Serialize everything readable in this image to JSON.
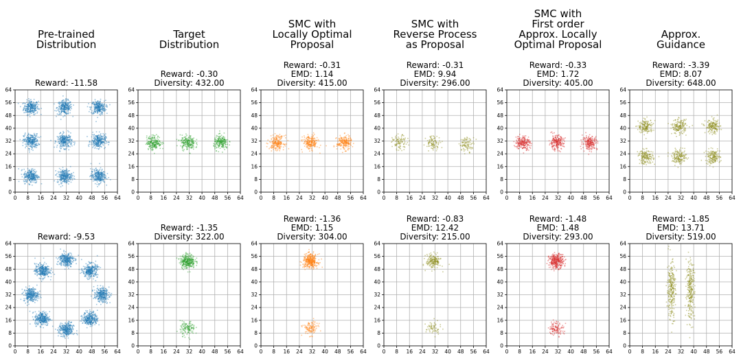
{
  "figure": {
    "columns": [
      "Pre-trained\nDistribution",
      "Target\nDistribution",
      "SMC with\nLocally Optimal\nProposal",
      "SMC with\nReverse Process\nas Proposal",
      "SMC with\nFirst order\nApprox. Locally\nOptimal Proposal",
      "Approx.\nGuidance"
    ]
  },
  "colors": {
    "blue": "#1f77b4",
    "green": "#2ca02c",
    "orange": "#ff7f0e",
    "olive": "#8c8c1a",
    "red": "#d62728"
  },
  "chart_data": [
    {
      "type": "scatter",
      "row": 0,
      "col": 0,
      "subtitle": "Reward: -11.58",
      "color": "blue",
      "xlim": [
        0,
        64
      ],
      "ylim": [
        0,
        64
      ],
      "ticks": [
        0,
        8,
        16,
        24,
        32,
        40,
        48,
        56,
        64
      ],
      "grid": true,
      "clusters": [
        {
          "x": 10,
          "y": 53,
          "n": 260
        },
        {
          "x": 31,
          "y": 53,
          "n": 260
        },
        {
          "x": 52,
          "y": 53,
          "n": 260
        },
        {
          "x": 10,
          "y": 32,
          "n": 260
        },
        {
          "x": 31,
          "y": 32,
          "n": 260
        },
        {
          "x": 52,
          "y": 32,
          "n": 260
        },
        {
          "x": 10,
          "y": 10,
          "n": 260
        },
        {
          "x": 31,
          "y": 10,
          "n": 260
        },
        {
          "x": 52,
          "y": 10,
          "n": 260
        }
      ]
    },
    {
      "type": "scatter",
      "row": 0,
      "col": 1,
      "subtitle": "Reward: -0.30\nDiversity: 432.00",
      "color": "green",
      "xlim": [
        0,
        64
      ],
      "ylim": [
        0,
        64
      ],
      "ticks": [
        0,
        8,
        16,
        24,
        32,
        40,
        48,
        56,
        64
      ],
      "grid": true,
      "clusters": [
        {
          "x": 10,
          "y": 31,
          "n": 200
        },
        {
          "x": 31,
          "y": 31,
          "n": 200
        },
        {
          "x": 52,
          "y": 31,
          "n": 200
        }
      ]
    },
    {
      "type": "scatter",
      "row": 0,
      "col": 2,
      "subtitle": "Reward: -0.31\nEMD: 1.14\nDiversity: 415.00",
      "color": "orange",
      "xlim": [
        0,
        64
      ],
      "ylim": [
        0,
        64
      ],
      "ticks": [
        0,
        8,
        16,
        24,
        32,
        40,
        48,
        56,
        64
      ],
      "grid": true,
      "clusters": [
        {
          "x": 10,
          "y": 31,
          "n": 200
        },
        {
          "x": 31,
          "y": 31,
          "n": 200
        },
        {
          "x": 52,
          "y": 31,
          "n": 200
        }
      ]
    },
    {
      "type": "scatter",
      "row": 0,
      "col": 3,
      "subtitle": "Reward: -0.31\nEMD: 9.94\nDiversity: 296.00",
      "color": "olive",
      "xlim": [
        0,
        64
      ],
      "ylim": [
        0,
        64
      ],
      "ticks": [
        0,
        8,
        16,
        24,
        32,
        40,
        48,
        56,
        64
      ],
      "grid": true,
      "clusters": [
        {
          "x": 10,
          "y": 31,
          "n": 90
        },
        {
          "x": 31,
          "y": 31,
          "n": 90
        },
        {
          "x": 52,
          "y": 30,
          "n": 90
        }
      ]
    },
    {
      "type": "scatter",
      "row": 0,
      "col": 4,
      "subtitle": "Reward: -0.33\nEMD: 1.72\nDiversity: 405.00",
      "color": "red",
      "xlim": [
        0,
        64
      ],
      "ylim": [
        0,
        64
      ],
      "ticks": [
        0,
        8,
        16,
        24,
        32,
        40,
        48,
        56,
        64
      ],
      "grid": true,
      "clusters": [
        {
          "x": 10,
          "y": 31,
          "n": 200
        },
        {
          "x": 31,
          "y": 31,
          "n": 200
        },
        {
          "x": 52,
          "y": 31,
          "n": 200
        }
      ]
    },
    {
      "type": "scatter",
      "row": 0,
      "col": 5,
      "subtitle": "Reward: -3.39\nEMD: 8.07\nDiversity: 648.00",
      "color": "olive",
      "xlim": [
        0,
        64
      ],
      "ylim": [
        0,
        64
      ],
      "ticks": [
        0,
        8,
        16,
        24,
        32,
        40,
        48,
        56,
        64
      ],
      "grid": true,
      "clusters": [
        {
          "x": 10,
          "y": 41,
          "n": 160
        },
        {
          "x": 31,
          "y": 41,
          "n": 160
        },
        {
          "x": 52,
          "y": 41,
          "n": 160
        },
        {
          "x": 10,
          "y": 22,
          "n": 160
        },
        {
          "x": 31,
          "y": 22,
          "n": 160
        },
        {
          "x": 52,
          "y": 22,
          "n": 160
        }
      ]
    },
    {
      "type": "scatter",
      "row": 1,
      "col": 0,
      "subtitle": "Reward: -9.53",
      "color": "blue",
      "xlim": [
        0,
        64
      ],
      "ylim": [
        0,
        64
      ],
      "ticks": [
        0,
        8,
        16,
        24,
        32,
        40,
        48,
        56,
        64
      ],
      "grid": true,
      "clusters": [
        {
          "x": 32,
          "y": 54,
          "n": 280
        },
        {
          "x": 47,
          "y": 47,
          "n": 280
        },
        {
          "x": 54,
          "y": 32,
          "n": 280
        },
        {
          "x": 47,
          "y": 17,
          "n": 280
        },
        {
          "x": 32,
          "y": 10,
          "n": 280
        },
        {
          "x": 17,
          "y": 17,
          "n": 280
        },
        {
          "x": 10,
          "y": 32,
          "n": 280
        },
        {
          "x": 17,
          "y": 47,
          "n": 280
        }
      ]
    },
    {
      "type": "scatter",
      "row": 1,
      "col": 1,
      "subtitle": "Reward: -1.35\nDiversity: 322.00",
      "color": "green",
      "xlim": [
        0,
        64
      ],
      "ylim": [
        0,
        64
      ],
      "ticks": [
        0,
        8,
        16,
        24,
        32,
        40,
        48,
        56,
        64
      ],
      "grid": true,
      "clusters": [
        {
          "x": 31,
          "y": 53,
          "n": 300
        },
        {
          "x": 31,
          "y": 11,
          "n": 120
        }
      ]
    },
    {
      "type": "scatter",
      "row": 1,
      "col": 2,
      "subtitle": "Reward: -1.36\nEMD: 1.15\nDiversity: 304.00",
      "color": "orange",
      "xlim": [
        0,
        64
      ],
      "ylim": [
        0,
        64
      ],
      "ticks": [
        0,
        8,
        16,
        24,
        32,
        40,
        48,
        56,
        64
      ],
      "grid": true,
      "clusters": [
        {
          "x": 31,
          "y": 53,
          "n": 320
        },
        {
          "x": 31,
          "y": 11,
          "n": 110
        }
      ]
    },
    {
      "type": "scatter",
      "row": 1,
      "col": 3,
      "subtitle": "Reward: -0.83\nEMD: 12.42\nDiversity: 215.00",
      "color": "olive",
      "xlim": [
        0,
        64
      ],
      "ylim": [
        0,
        64
      ],
      "ticks": [
        0,
        8,
        16,
        24,
        32,
        40,
        48,
        56,
        64
      ],
      "grid": true,
      "clusters": [
        {
          "x": 31,
          "y": 53,
          "n": 180
        },
        {
          "x": 31,
          "y": 11,
          "n": 60
        }
      ]
    },
    {
      "type": "scatter",
      "row": 1,
      "col": 4,
      "subtitle": "Reward: -1.48\nEMD: 1.48\nDiversity: 293.00",
      "color": "red",
      "xlim": [
        0,
        64
      ],
      "ylim": [
        0,
        64
      ],
      "ticks": [
        0,
        8,
        16,
        24,
        32,
        40,
        48,
        56,
        64
      ],
      "grid": true,
      "clusters": [
        {
          "x": 31,
          "y": 53,
          "n": 300
        },
        {
          "x": 31,
          "y": 11,
          "n": 110
        }
      ]
    },
    {
      "type": "scatter",
      "row": 1,
      "col": 5,
      "subtitle": "Reward: -1.85\nEMD: 13.71\nDiversity: 519.00",
      "color": "olive",
      "xlim": [
        0,
        64
      ],
      "ylim": [
        0,
        64
      ],
      "ticks": [
        0,
        8,
        16,
        24,
        32,
        40,
        48,
        56,
        64
      ],
      "grid": true,
      "clusters": [
        {
          "x": 26,
          "y": 35,
          "n": 260
        },
        {
          "x": 38,
          "y": 35,
          "n": 260
        }
      ]
    }
  ]
}
